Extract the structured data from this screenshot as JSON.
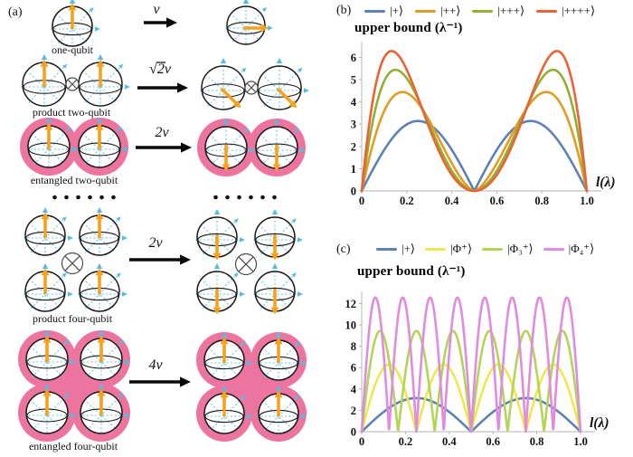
{
  "figure": {
    "panel_a": {
      "label": "(a)",
      "ellipsis_dot_count": 6,
      "rows": [
        {
          "id": "one-qubit",
          "label": "one-qubit",
          "speed_label": "v",
          "qubits": 1,
          "entangled": false,
          "left_state": "up",
          "right_state": "right"
        },
        {
          "id": "product-two-qubit",
          "label": "product two-qubit",
          "speed_label": "√2v",
          "qubits": 2,
          "entangled": false,
          "left_state": "up",
          "right_state": "down-right"
        },
        {
          "id": "entangled-two-qubit",
          "label": "entangled two-qubit",
          "speed_label": "2v",
          "qubits": 2,
          "entangled": true,
          "left_state": "up",
          "right_state": "down"
        },
        {
          "id": "product-four-qubit",
          "label": "product four-qubit",
          "speed_label": "2v",
          "qubits": 4,
          "entangled": false,
          "left_state": "up",
          "right_state": "down"
        },
        {
          "id": "entangled-four-qubit",
          "label": "entangled four-qubit",
          "speed_label": "4v",
          "qubits": 4,
          "entangled": true,
          "left_state": "up",
          "right_state": "up"
        }
      ]
    },
    "panel_b": {
      "label": "(b)"
    },
    "panel_c": {
      "label": "(c)"
    },
    "colors": {
      "state_arrow_orange": "#F6A11E",
      "entanglement_pink": "#EE74A0",
      "bloch_axis_cyan": "#6FC8E8",
      "bloch_axis_arrowhead_cyan": "#55BBE0",
      "sphere_outline": "#1b1b1b",
      "plot_axis_gray": "#b5b5b5"
    }
  },
  "chart_data": [
    {
      "id": "b",
      "type": "line",
      "title": "upper bound (λ⁻¹)",
      "xlabel": "l(λ)",
      "xlim": [
        0,
        1
      ],
      "ylim": [
        0,
        6.6
      ],
      "xtick_labels": [
        "0",
        "0.2",
        "0.4",
        "0.6",
        "0.8",
        "1.0"
      ],
      "yticks": [
        0,
        1,
        2,
        3,
        4,
        5,
        6
      ],
      "grid": false,
      "legend_position": "top",
      "series": [
        {
          "label": "|+⟩",
          "color": "#5E81B5",
          "model": "product",
          "N": 1,
          "peak": 3.1416,
          "peak_x": 0.25,
          "zeros": [
            0,
            0.5,
            1
          ],
          "shape_q": 1.0,
          "shape_b": 1.0,
          "formula": "π·|sin(2π·l)|"
        },
        {
          "label": "|++⟩",
          "color": "#E19C24",
          "model": "product",
          "N": 2,
          "peak": 4.4429,
          "peak_x": 0.18,
          "zeros": [
            0,
            0.5,
            1
          ],
          "shape_q": 0.68,
          "shape_b": 1.5,
          "formula": "≈√2·π envelope, peak at l≈0.18"
        },
        {
          "label": "|+++⟩",
          "color": "#8FB032",
          "model": "product",
          "N": 3,
          "peak": 5.4414,
          "peak_x": 0.15,
          "zeros": [
            0,
            0.5,
            1
          ],
          "shape_q": 0.576,
          "shape_b": 1.8,
          "formula": "≈√3·π envelope, peak at l≈0.15"
        },
        {
          "label": "|++++⟩",
          "color": "#EB6235",
          "model": "product",
          "N": 4,
          "peak": 6.2832,
          "peak_x": 0.133,
          "zeros": [
            0,
            0.5,
            1
          ],
          "shape_q": 0.523,
          "shape_b": 2.0,
          "formula": "≈2π envelope, peak at l≈0.13"
        }
      ]
    },
    {
      "id": "c",
      "type": "line",
      "title": "upper bound (λ⁻¹)",
      "xlabel": "l(λ)",
      "xlim": [
        0,
        1
      ],
      "ylim": [
        0,
        13
      ],
      "xtick_labels": [
        "0",
        "0.2",
        "0.4",
        "0.6",
        "0.8",
        "1.0"
      ],
      "yticks": [
        0,
        2,
        4,
        6,
        8,
        10,
        12
      ],
      "grid": false,
      "legend_position": "top",
      "series": [
        {
          "label": "|+⟩",
          "color": "#5E81B5",
          "model": "harmonic",
          "N": 1,
          "peak": 3.1416,
          "num_humps": 2,
          "formula": "π·|sin(2π·l)|"
        },
        {
          "label": "|Φ⁺⟩",
          "color": "#F2E64E",
          "model": "harmonic",
          "N": 2,
          "peak": 6.2832,
          "num_humps": 4,
          "formula": "2π·|sin(4π·l)|"
        },
        {
          "label": "|Φ₃⁺⟩",
          "color": "#B2D457",
          "model": "harmonic",
          "N": 3,
          "peak": 9.4248,
          "num_humps": 6,
          "formula": "3π·|sin(6π·l)|"
        },
        {
          "label": "|Φ₄⁺⟩",
          "color": "#E08BE0",
          "model": "harmonic",
          "N": 4,
          "peak": 12.566,
          "num_humps": 8,
          "formula": "4π·|sin(8π·l)|"
        }
      ]
    }
  ]
}
